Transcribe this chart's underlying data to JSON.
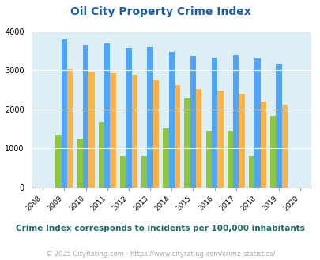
{
  "title": "Oil City Property Crime Index",
  "years": [
    2008,
    2009,
    2010,
    2011,
    2012,
    2013,
    2014,
    2015,
    2016,
    2017,
    2018,
    2019,
    2020
  ],
  "oil_city": [
    null,
    1350,
    1250,
    1670,
    790,
    790,
    1510,
    2300,
    1440,
    1440,
    800,
    1840,
    null
  ],
  "louisiana": [
    null,
    3790,
    3650,
    3680,
    3560,
    3580,
    3460,
    3360,
    3330,
    3380,
    3300,
    3170,
    null
  ],
  "national": [
    null,
    3050,
    2960,
    2930,
    2890,
    2740,
    2610,
    2510,
    2470,
    2400,
    2200,
    2120,
    null
  ],
  "oil_city_color": "#8dc63f",
  "louisiana_color": "#4da6ff",
  "national_color": "#ffb347",
  "bg_color": "#ddeef5",
  "ylim": [
    0,
    4000
  ],
  "yticks": [
    0,
    1000,
    2000,
    3000,
    4000
  ],
  "subtitle": "Crime Index corresponds to incidents per 100,000 inhabitants",
  "footer": "© 2025 CityRating.com - https://www.cityrating.com/crime-statistics/",
  "title_color": "#1a5fa8",
  "subtitle_color": "#1a6b6b",
  "footer_color": "#aaaaaa"
}
